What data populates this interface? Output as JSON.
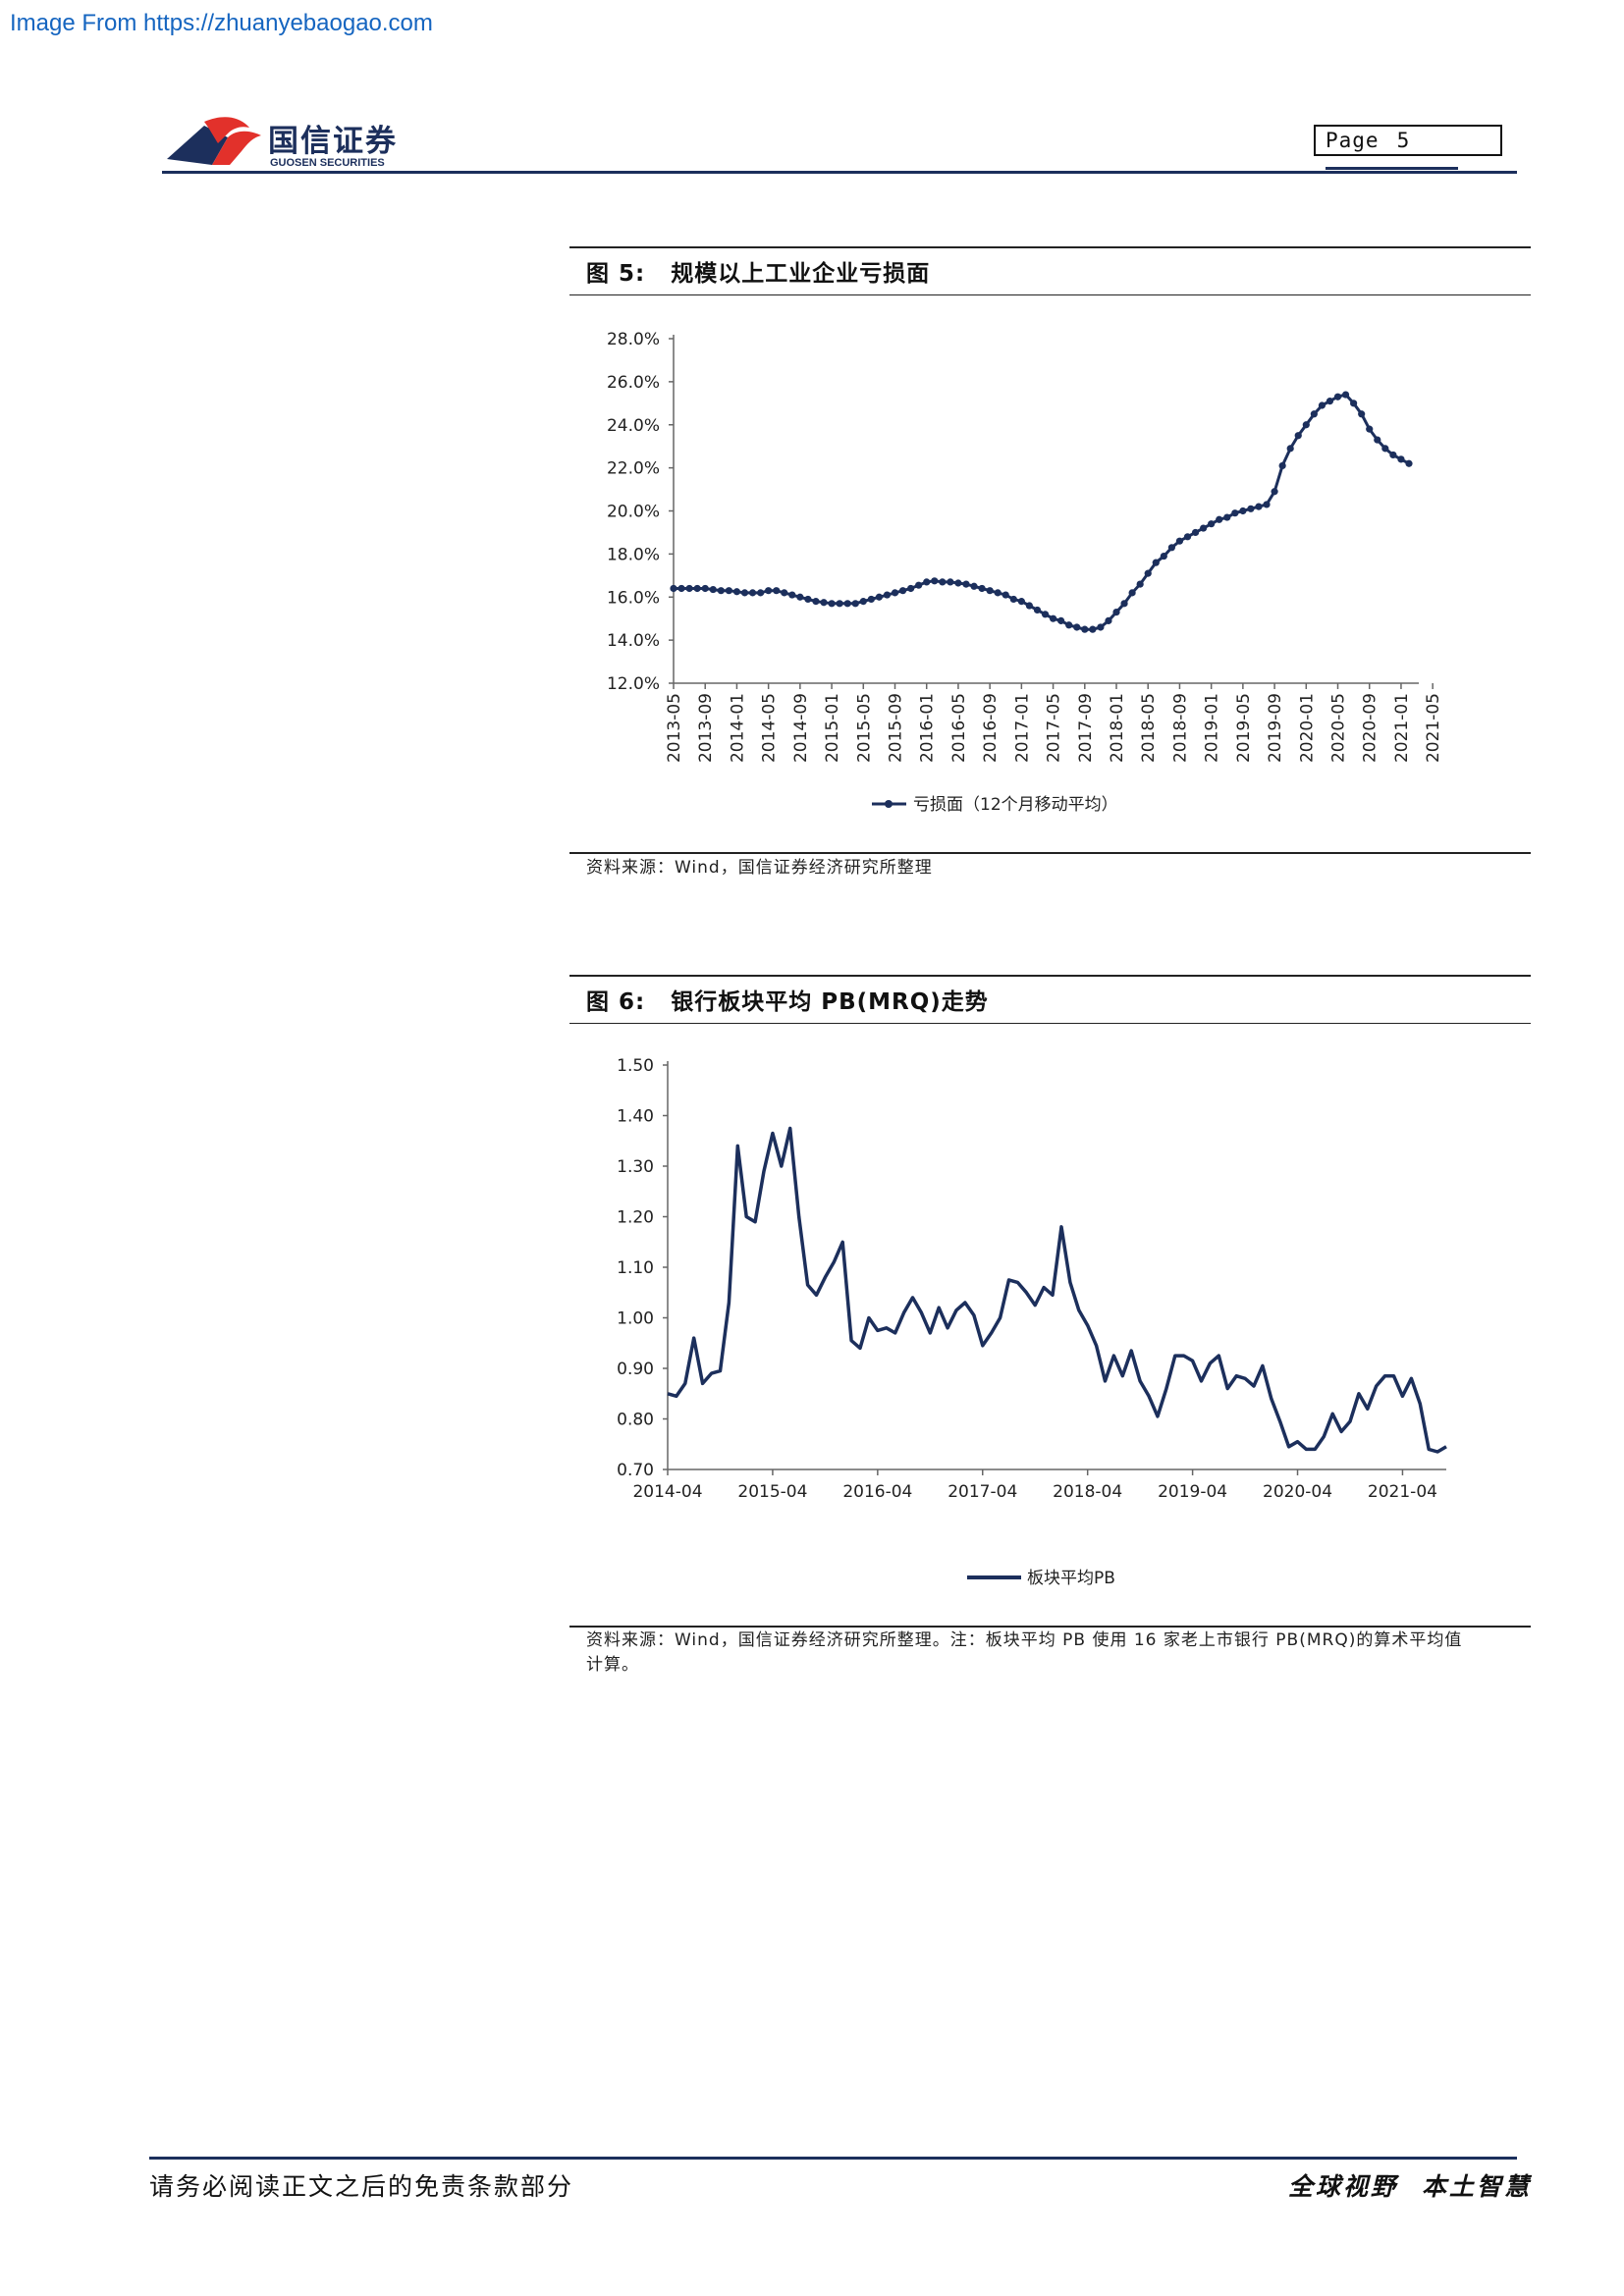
{
  "header": {
    "watermark": "Image From https://zhuanyebaogao.com",
    "brand_cn": "国信证券",
    "brand_en": "GUOSEN SECURITIES",
    "page_label": "Page",
    "page_number": "5",
    "brand_color": "#1c2f5c",
    "logo_accent_color": "#e2312b"
  },
  "figure5": {
    "label": "图 5:",
    "title": "规模以上工业企业亏损面",
    "source": "资料来源：Wind，国信证券经济研究所整理"
  },
  "figure6": {
    "label": "图 6:",
    "title": "银行板块平均 PB(MRQ)走势",
    "source_line1": "资料来源：Wind，国信证券经济研究所整理。注：板块平均 PB 使用 16 家老上市银行 PB(MRQ)的算术平均值",
    "source_line2": "计算。"
  },
  "footer": {
    "disclaimer": "请务必阅读正文之后的免责条款部分",
    "slogan_1": "全球视野",
    "slogan_2": "本土智慧"
  },
  "chart_data": [
    {
      "type": "line",
      "x_tick_labels": [
        "2013-05",
        "2013-09",
        "2014-01",
        "2014-05",
        "2014-09",
        "2015-01",
        "2015-05",
        "2015-09",
        "2016-01",
        "2016-05",
        "2016-09",
        "2017-01",
        "2017-05",
        "2017-09",
        "2018-01",
        "2018-05",
        "2018-09",
        "2019-01",
        "2019-05",
        "2019-09",
        "2020-01",
        "2020-05",
        "2020-09",
        "2021-01",
        "2021-05"
      ],
      "y_tick_labels": [
        "12.0%",
        "14.0%",
        "16.0%",
        "18.0%",
        "20.0%",
        "22.0%",
        "24.0%",
        "26.0%",
        "28.0%"
      ],
      "ylim": [
        12,
        28
      ],
      "markers": true,
      "color": "#1c2f5c",
      "series": [
        {
          "name": "亏损面（12个月移动平均）",
          "start": "2013-05",
          "frequency": "monthly",
          "values": [
            16.4,
            16.4,
            16.4,
            16.4,
            16.4,
            16.35,
            16.3,
            16.3,
            16.25,
            16.2,
            16.2,
            16.2,
            16.3,
            16.3,
            16.2,
            16.1,
            16.0,
            15.9,
            15.8,
            15.75,
            15.7,
            15.7,
            15.7,
            15.7,
            15.8,
            15.9,
            16.0,
            16.1,
            16.2,
            16.3,
            16.4,
            16.55,
            16.7,
            16.75,
            16.7,
            16.7,
            16.65,
            16.6,
            16.5,
            16.4,
            16.3,
            16.2,
            16.1,
            15.9,
            15.8,
            15.6,
            15.4,
            15.2,
            15.0,
            14.9,
            14.7,
            14.6,
            14.5,
            14.5,
            14.6,
            14.9,
            15.3,
            15.7,
            16.2,
            16.6,
            17.1,
            17.6,
            17.9,
            18.3,
            18.6,
            18.8,
            19.0,
            19.2,
            19.4,
            19.6,
            19.7,
            19.9,
            20.0,
            20.1,
            20.2,
            20.3,
            20.9,
            22.1,
            22.9,
            23.5,
            24.0,
            24.5,
            24.9,
            25.1,
            25.3,
            25.4,
            25.0,
            24.5,
            23.8,
            23.3,
            22.9,
            22.6,
            22.4,
            22.2
          ]
        }
      ]
    },
    {
      "type": "line",
      "x_tick_labels": [
        "2014-04",
        "2015-04",
        "2016-04",
        "2017-04",
        "2018-04",
        "2019-04",
        "2020-04",
        "2021-04"
      ],
      "y_tick_labels": [
        "0.70",
        "0.80",
        "0.90",
        "1.00",
        "1.10",
        "1.20",
        "1.30",
        "1.40",
        "1.50"
      ],
      "ylim": [
        0.7,
        1.5
      ],
      "markers": false,
      "color": "#1c2f5c",
      "series": [
        {
          "name": "板块平均PB",
          "start": "2014-04",
          "frequency": "monthly",
          "values": [
            0.85,
            0.845,
            0.87,
            0.96,
            0.87,
            0.89,
            0.895,
            1.03,
            1.34,
            1.2,
            1.19,
            1.29,
            1.365,
            1.3,
            1.375,
            1.2,
            1.065,
            1.045,
            1.08,
            1.11,
            1.15,
            0.955,
            0.94,
            1.0,
            0.975,
            0.98,
            0.97,
            1.01,
            1.04,
            1.01,
            0.97,
            1.02,
            0.98,
            1.015,
            1.03,
            1.005,
            0.945,
            0.97,
            1.0,
            1.075,
            1.07,
            1.05,
            1.025,
            1.06,
            1.045,
            1.18,
            1.07,
            1.015,
            0.985,
            0.945,
            0.875,
            0.925,
            0.885,
            0.935,
            0.875,
            0.845,
            0.805,
            0.86,
            0.925,
            0.925,
            0.915,
            0.875,
            0.91,
            0.925,
            0.86,
            0.885,
            0.88,
            0.865,
            0.905,
            0.84,
            0.795,
            0.745,
            0.755,
            0.74,
            0.74,
            0.765,
            0.81,
            0.775,
            0.795,
            0.85,
            0.82,
            0.865,
            0.885,
            0.885,
            0.845,
            0.88,
            0.83,
            0.74,
            0.735,
            0.745
          ]
        }
      ]
    }
  ]
}
